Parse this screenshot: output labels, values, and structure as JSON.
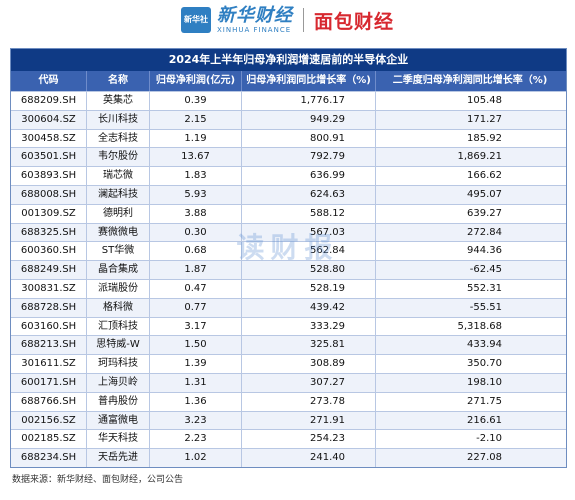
{
  "brand": {
    "xinhua_seal": "新华社",
    "xinhua_name": "新华财经",
    "xinhua_en": "XINHUA FINANCE",
    "mianbao_name": "面包财经"
  },
  "table": {
    "title": "2024年上半年归母净利润增速居前的半导体企业",
    "headers": [
      "代码",
      "名称",
      "归母净利润(亿元)",
      "归母净利润同比增长率（%)",
      "二季度归母净利润同比增长率（%)"
    ],
    "rows": [
      [
        "688209.SH",
        "英集芯",
        "0.39",
        "1,776.17",
        "105.48"
      ],
      [
        "300604.SZ",
        "长川科技",
        "2.15",
        "949.29",
        "171.27"
      ],
      [
        "300458.SZ",
        "全志科技",
        "1.19",
        "800.91",
        "185.92"
      ],
      [
        "603501.SH",
        "韦尔股份",
        "13.67",
        "792.79",
        "1,869.21"
      ],
      [
        "603893.SH",
        "瑞芯微",
        "1.83",
        "636.99",
        "166.62"
      ],
      [
        "688008.SH",
        "澜起科技",
        "5.93",
        "624.63",
        "495.07"
      ],
      [
        "001309.SZ",
        "德明利",
        "3.88",
        "588.12",
        "639.27"
      ],
      [
        "688325.SH",
        "赛微微电",
        "0.30",
        "567.03",
        "272.84"
      ],
      [
        "600360.SH",
        "ST华微",
        "0.68",
        "562.84",
        "944.36"
      ],
      [
        "688249.SH",
        "晶合集成",
        "1.87",
        "528.80",
        "-62.45"
      ],
      [
        "300831.SZ",
        "派瑞股份",
        "0.47",
        "528.19",
        "552.31"
      ],
      [
        "688728.SH",
        "格科微",
        "0.77",
        "439.42",
        "-55.51"
      ],
      [
        "603160.SH",
        "汇顶科技",
        "3.17",
        "333.29",
        "5,318.68"
      ],
      [
        "688213.SH",
        "思特威-W",
        "1.50",
        "325.81",
        "433.94"
      ],
      [
        "301611.SZ",
        "珂玛科技",
        "1.39",
        "308.89",
        "350.70"
      ],
      [
        "600171.SH",
        "上海贝岭",
        "1.31",
        "307.27",
        "198.10"
      ],
      [
        "688766.SH",
        "普冉股份",
        "1.36",
        "273.78",
        "271.75"
      ],
      [
        "002156.SZ",
        "通富微电",
        "3.23",
        "271.91",
        "216.61"
      ],
      [
        "002185.SZ",
        "华天科技",
        "2.23",
        "254.23",
        "-2.10"
      ],
      [
        "688234.SH",
        "天岳先进",
        "1.02",
        "241.40",
        "227.08"
      ]
    ]
  },
  "watermark": "读财报",
  "source": "数据来源：新华财经、面包财经，公司公告"
}
